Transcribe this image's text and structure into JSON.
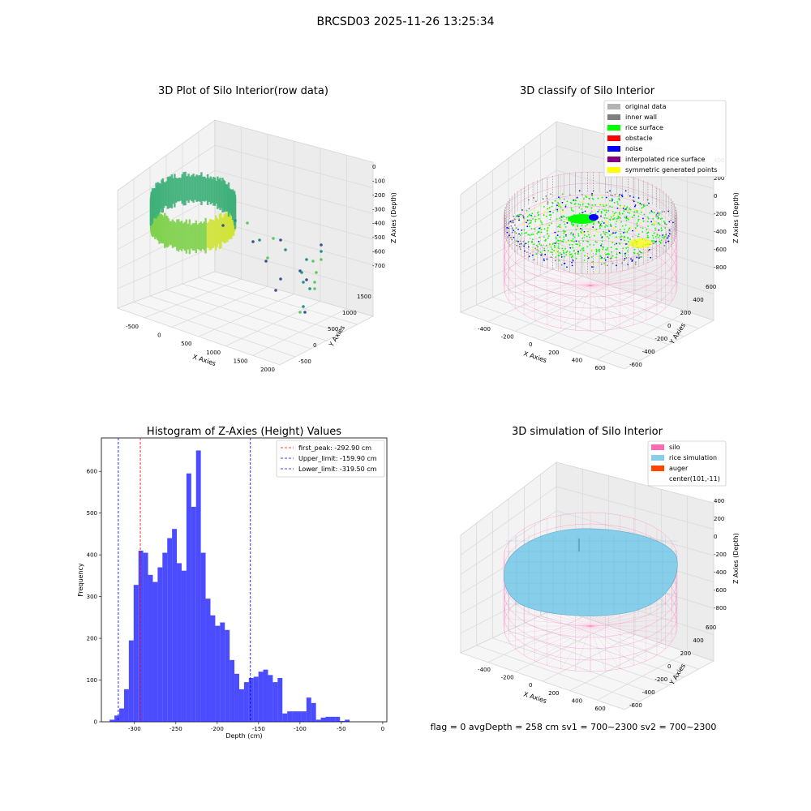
{
  "suptitle": "BRCSD03 2025-11-26 13:25:34",
  "footer": "flag = 0     avgDepth = 258 cm  sv1 = 700~2300  sv2 = 700~2300",
  "panels": {
    "raw": {
      "title": "3D Plot of Silo Interior(row data)",
      "xlabel": "X Axies",
      "ylabel": "Y Axies",
      "zlabel": "Z Axies (Depth)",
      "xticks": [
        "-500",
        "0",
        "500",
        "1000",
        "1500",
        "2000"
      ],
      "yticks": [
        "-500",
        "0",
        "500",
        "1000",
        "1500"
      ],
      "zticks": [
        "0",
        "-100",
        "-200",
        "-300",
        "-400",
        "-500",
        "-600",
        "-700"
      ]
    },
    "classify": {
      "title": "3D classify of Silo Interior",
      "xlabel": "X Axies",
      "ylabel": "Y Axies",
      "zlabel": "Z Axies (Depth)",
      "xticks": [
        "-400",
        "-200",
        "0",
        "200",
        "400",
        "600"
      ],
      "yticks": [
        "-600",
        "-400",
        "-200",
        "0",
        "200",
        "400",
        "600"
      ],
      "zticks": [
        "400",
        "200",
        "0",
        "-200",
        "-400",
        "-600",
        "-800"
      ],
      "legend": [
        {
          "label": "original data",
          "color": "#b3b3b3"
        },
        {
          "label": "inner wall",
          "color": "#808080"
        },
        {
          "label": "rice surface",
          "color": "#00ff00"
        },
        {
          "label": "obstacle",
          "color": "#ff0000"
        },
        {
          "label": "noise",
          "color": "#0000ff"
        },
        {
          "label": "interpolated rice surface",
          "color": "#800080"
        },
        {
          "label": "symmetric generated points",
          "color": "#ffff00"
        }
      ]
    },
    "simulation": {
      "title": "3D simulation of Silo Interior",
      "xlabel": "X Axies",
      "ylabel": "Y Axies",
      "zlabel": "Z Axies (Depth)",
      "xticks": [
        "-400",
        "-200",
        "0",
        "200",
        "400",
        "600"
      ],
      "yticks": [
        "-600",
        "-400",
        "-200",
        "0",
        "200",
        "400",
        "600"
      ],
      "zticks": [
        "400",
        "200",
        "0",
        "-200",
        "-400",
        "-600",
        "-800"
      ],
      "legend": [
        {
          "label": "silo",
          "color": "#ff69b4"
        },
        {
          "label": "rice simulation",
          "color": "#87ceeb"
        },
        {
          "label": "auger",
          "color": "#ff4500"
        },
        {
          "label": "center(101,-11)",
          "color": ""
        }
      ]
    }
  },
  "chart_data": {
    "type": "bar",
    "title": "Histogram of Z-Axies (Height) Values",
    "xlabel": "Depth (cm)",
    "ylabel": "Frequency",
    "xlim": [
      -340,
      5
    ],
    "ylim": [
      0,
      680
    ],
    "xticks": [
      -300,
      -250,
      -200,
      -150,
      -100,
      -50,
      0
    ],
    "yticks": [
      0,
      100,
      200,
      300,
      400,
      500,
      600
    ],
    "bin_width": 5.8,
    "bin_start": -330,
    "values": [
      5,
      15,
      32,
      78,
      195,
      328,
      410,
      405,
      352,
      335,
      370,
      405,
      440,
      462,
      380,
      362,
      595,
      515,
      650,
      405,
      295,
      255,
      230,
      238,
      220,
      148,
      115,
      78,
      95,
      105,
      108,
      120,
      125,
      112,
      95,
      105,
      20,
      25,
      25,
      25,
      25,
      58,
      45,
      5,
      10,
      12,
      12,
      12,
      2,
      5
    ],
    "color": "#0000ff",
    "lines": [
      {
        "label": "first_peak: -292.90 cm",
        "x": -292.9,
        "color": "#ff0000"
      },
      {
        "label": "Upper_limit: -159.90 cm",
        "x": -159.9,
        "color": "#0000ff"
      },
      {
        "label": "Lower_limit: -319.50 cm",
        "x": -319.5,
        "color": "#0000ff"
      }
    ],
    "legend_position": "top-right"
  }
}
